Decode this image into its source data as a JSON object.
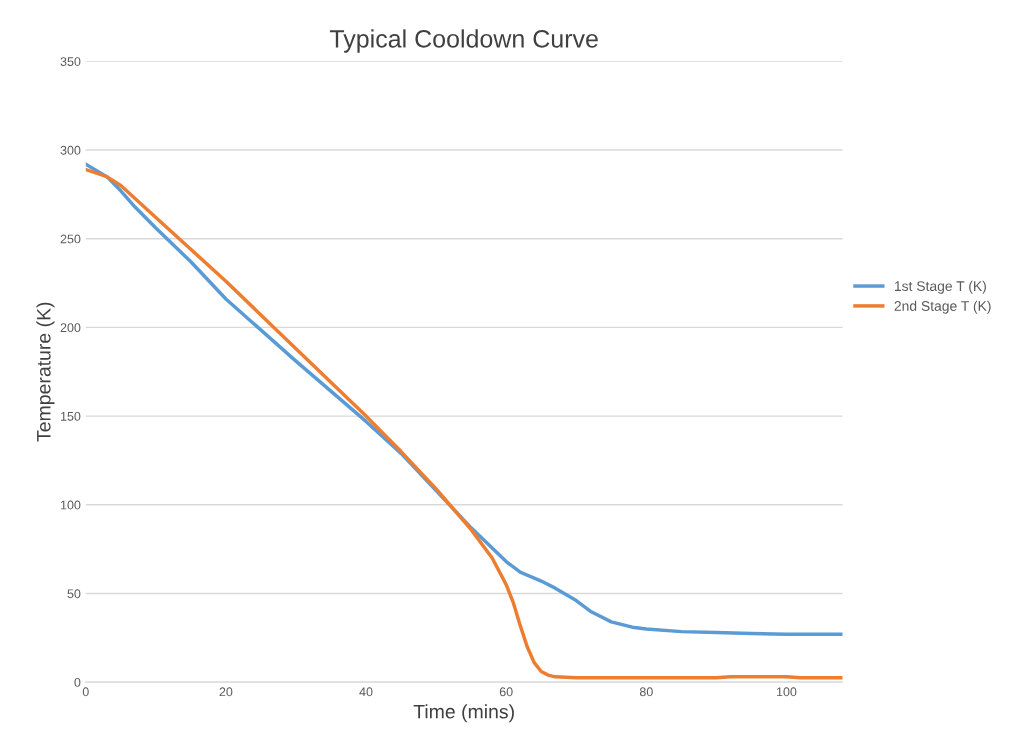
{
  "chart_data": {
    "type": "line",
    "title": "Typical Cooldown Curve",
    "xlabel": "Time (mins)",
    "ylabel": "Temperature (K)",
    "xlim": [
      0,
      108
    ],
    "xticks": [
      0,
      20,
      40,
      60,
      80,
      100
    ],
    "ylim": [
      0,
      350
    ],
    "yticks": [
      0,
      50,
      100,
      150,
      200,
      250,
      300,
      350
    ],
    "grid": "y",
    "legend": "right",
    "marker": "none",
    "line_style": "solid",
    "series": [
      {
        "name": "1st Stage T (K)",
        "color": "#5b9bd5",
        "x": [
          0,
          3,
          5,
          7,
          10,
          15,
          20,
          30,
          40,
          45,
          50,
          55,
          60,
          62,
          65,
          67,
          70,
          72,
          75,
          78,
          80,
          85,
          90,
          95,
          100,
          108
        ],
        "values": [
          292,
          285,
          277,
          268,
          256,
          237,
          216,
          181,
          147,
          129,
          108,
          87,
          68,
          62,
          57,
          53,
          46,
          40,
          34,
          31,
          30,
          28.5,
          28,
          27.5,
          27,
          27
        ]
      },
      {
        "name": "2nd Stage T (K)",
        "color": "#ed7d31",
        "x": [
          0,
          3,
          5,
          10,
          20,
          30,
          40,
          45,
          50,
          55,
          58,
          60,
          61,
          62,
          63,
          64,
          65,
          66,
          67,
          70,
          90,
          92,
          100,
          102,
          108
        ],
        "values": [
          289,
          285,
          280,
          262,
          226,
          188,
          150,
          130,
          109,
          86,
          70,
          55,
          45,
          32,
          20,
          11,
          6,
          4,
          3,
          2.5,
          2.5,
          3,
          3,
          2.5,
          2.5
        ]
      }
    ]
  }
}
